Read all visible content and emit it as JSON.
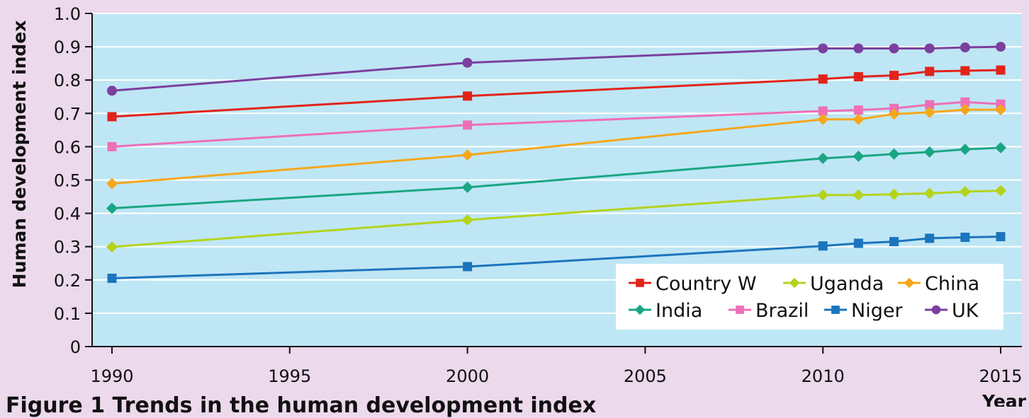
{
  "caption": "Figure 1 Trends in the human development index",
  "colors": {
    "plot_background": "#bfe6f5",
    "page_background": "#ecd9ec",
    "gridline": "#ffffff"
  },
  "chart_data": {
    "type": "line",
    "xlabel": "Year",
    "ylabel": "Human development index",
    "xlim": [
      1990,
      2015
    ],
    "ylim": [
      0,
      1.0
    ],
    "x_ticks": [
      1990,
      1995,
      2000,
      2005,
      2010,
      2015
    ],
    "y_ticks": [
      "0",
      "0.1",
      "0.2",
      "0.3",
      "0.4",
      "0.5",
      "0.6",
      "0.7",
      "0.8",
      "0.9",
      "1.0"
    ],
    "grid": "horizontal",
    "legend_position": "bottom-right",
    "x": [
      1990,
      2000,
      2010,
      2011,
      2012,
      2013,
      2014,
      2015
    ],
    "series": [
      {
        "name": "UK",
        "color": "#7b3f9e",
        "marker": "circle",
        "values": [
          0.768,
          0.852,
          0.895,
          0.895,
          0.895,
          0.895,
          0.898,
          0.9
        ]
      },
      {
        "name": "Country W",
        "color": "#e2231a",
        "marker": "square",
        "values": [
          0.69,
          0.752,
          0.803,
          0.81,
          0.814,
          0.826,
          0.828,
          0.83
        ]
      },
      {
        "name": "Brazil",
        "color": "#ee6fb7",
        "marker": "square",
        "values": [
          0.6,
          0.665,
          0.707,
          0.71,
          0.715,
          0.726,
          0.734,
          0.728
        ]
      },
      {
        "name": "China",
        "color": "#f6a71a",
        "marker": "diamond",
        "values": [
          0.489,
          0.575,
          0.682,
          0.682,
          0.698,
          0.703,
          0.711,
          0.711
        ]
      },
      {
        "name": "India",
        "color": "#1aa683",
        "marker": "diamond",
        "values": [
          0.415,
          0.478,
          0.565,
          0.571,
          0.578,
          0.584,
          0.592,
          0.597
        ]
      },
      {
        "name": "Uganda",
        "color": "#b5d31b",
        "marker": "diamond",
        "values": [
          0.299,
          0.38,
          0.455,
          0.455,
          0.457,
          0.46,
          0.465,
          0.468
        ]
      },
      {
        "name": "Niger",
        "color": "#1b75bc",
        "marker": "square",
        "values": [
          0.205,
          0.24,
          0.302,
          0.31,
          0.315,
          0.325,
          0.328,
          0.33
        ]
      }
    ],
    "legend_order": [
      "Country W",
      "Uganda",
      "China",
      "India",
      "Brazil",
      "Niger",
      "UK"
    ]
  }
}
